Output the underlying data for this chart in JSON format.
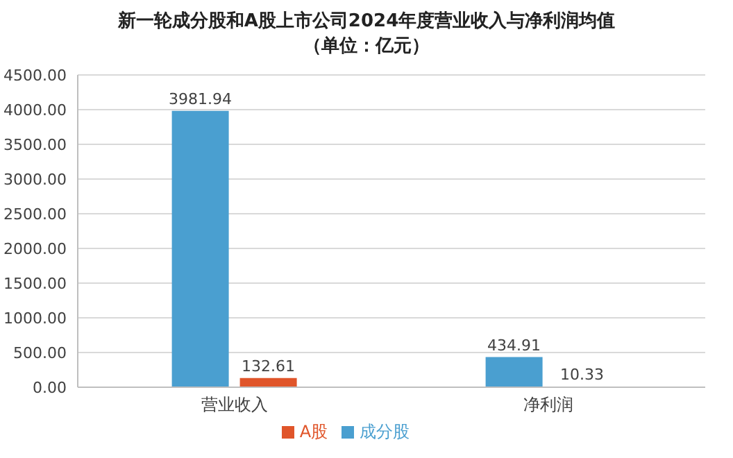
{
  "chart_data": {
    "type": "bar",
    "title": "新一轮成分股和A股上市公司2024年度营业收入与净利润均值",
    "subtitle": "（单位：亿元）",
    "categories": [
      "营业收入",
      "净利润"
    ],
    "series": [
      {
        "name": "成分股",
        "color": "#4a9fd0",
        "values": [
          3981.94,
          434.91
        ]
      },
      {
        "name": "A股",
        "color": "#e0552a",
        "values": [
          132.61,
          10.33
        ]
      }
    ],
    "ylim": [
      0,
      4500
    ],
    "yticks": [
      {
        "value": 0,
        "label": "0.00"
      },
      {
        "value": 500,
        "label": "500.00"
      },
      {
        "value": 1000,
        "label": "1000.00"
      },
      {
        "value": 1500,
        "label": "1500.00"
      },
      {
        "value": 2000,
        "label": "2000.00"
      },
      {
        "value": 2500,
        "label": "2500.00"
      },
      {
        "value": 3000,
        "label": "3000.00"
      },
      {
        "value": 3500,
        "label": "3500.00"
      },
      {
        "value": 4000,
        "label": "4000.00"
      },
      {
        "value": 4500,
        "label": "4500.00"
      }
    ],
    "grid": "y",
    "legend": "bottom",
    "data_labels": true
  }
}
